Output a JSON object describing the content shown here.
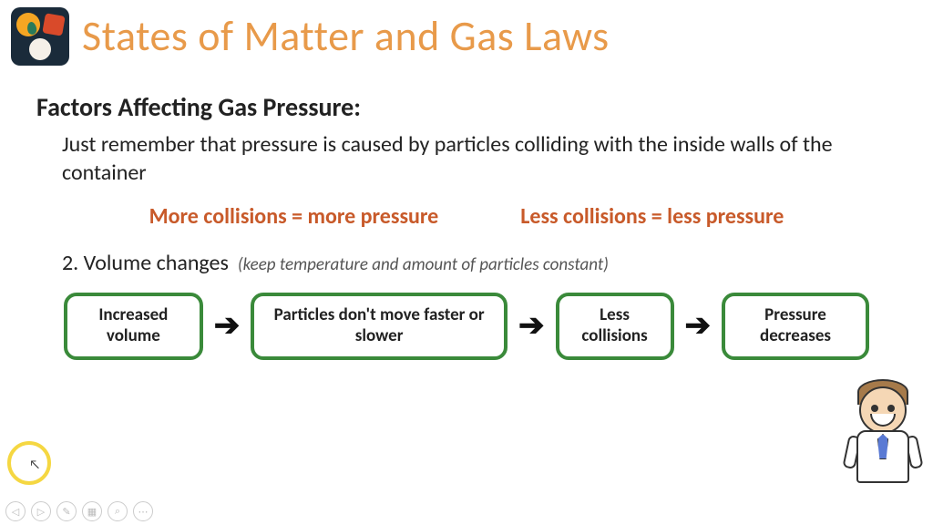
{
  "title": "States of Matter and Gas Laws",
  "title_color": "#e89a4a",
  "subtitle": "Factors Affecting Gas Pressure:",
  "body_text": "Just remember that pressure is caused by particles colliding with the inside walls of the container",
  "equations": {
    "left": "More collisions = more pressure",
    "right": "Less collisions = less pressure",
    "color": "#c85a2a"
  },
  "section": {
    "number_label": "2. Volume changes",
    "note": "(keep temperature and amount of particles constant)"
  },
  "flow": {
    "node_border_color": "#3a8a3a",
    "node_border_radius": 14,
    "arrow_glyph": "➔",
    "nodes": [
      "Increased volume",
      "Particles don't move faster or slower",
      "Less collisions",
      "Pressure decreases"
    ]
  },
  "toolbar_icons": [
    "◁",
    "▷",
    "✎",
    "▦",
    "⌕",
    "⋯"
  ],
  "highlight_ring_color": "#f5d742",
  "background_color": "#ffffff"
}
